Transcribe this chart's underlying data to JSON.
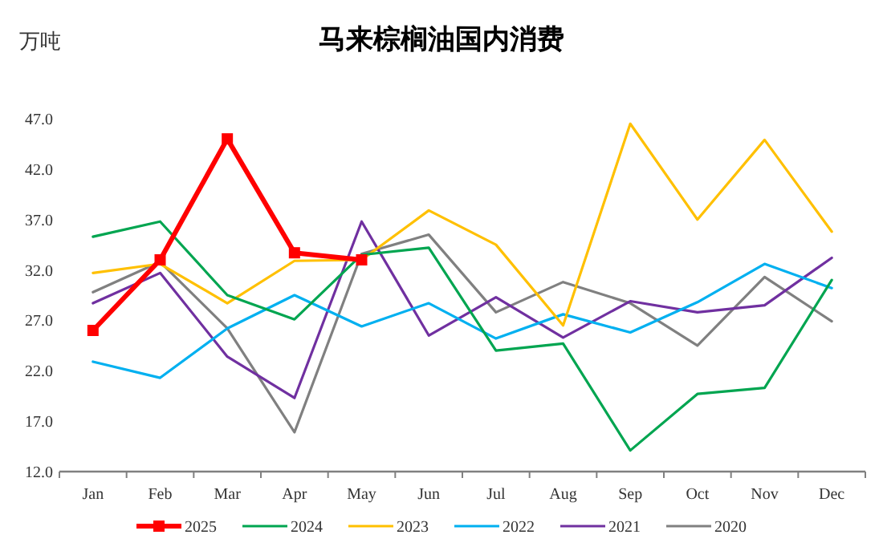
{
  "chart_data": {
    "type": "line",
    "title": "马来棕榈油国内消费",
    "ylabel": "万吨",
    "categories": [
      "Jan",
      "Feb",
      "Mar",
      "Apr",
      "May",
      "Jun",
      "Jul",
      "Aug",
      "Sep",
      "Oct",
      "Nov",
      "Dec"
    ],
    "ylim": [
      12,
      47
    ],
    "yticks": [
      {
        "value": 12,
        "label": "12.0"
      },
      {
        "value": 17,
        "label": "17.0"
      },
      {
        "value": 22,
        "label": "22.0"
      },
      {
        "value": 27,
        "label": "27.0"
      },
      {
        "value": 32,
        "label": "32.0"
      },
      {
        "value": 37,
        "label": "37.0"
      },
      {
        "value": 42,
        "label": "42.0"
      },
      {
        "value": 47,
        "label": "47.0"
      }
    ],
    "grid": false,
    "legend": "bottom",
    "line_style": "solid",
    "series": [
      {
        "name": "2025",
        "color": "#ff0000",
        "marker": "square",
        "values": [
          26.0,
          33.0,
          45.0,
          33.7,
          33.0,
          null,
          null,
          null,
          null,
          null,
          null,
          null
        ]
      },
      {
        "name": "2024",
        "color": "#00a550",
        "values": [
          35.3,
          36.8,
          29.5,
          27.1,
          33.5,
          34.2,
          24.0,
          24.7,
          14.1,
          19.7,
          20.3,
          31.0
        ]
      },
      {
        "name": "2023",
        "color": "#ffc000",
        "values": [
          31.7,
          32.6,
          28.7,
          32.9,
          33.0,
          37.9,
          34.5,
          26.5,
          46.5,
          37.0,
          44.9,
          35.8
        ]
      },
      {
        "name": "2022",
        "color": "#00b0f0",
        "values": [
          22.9,
          21.3,
          26.2,
          29.5,
          26.4,
          28.7,
          25.2,
          27.6,
          25.8,
          28.8,
          32.6,
          30.2
        ]
      },
      {
        "name": "2021",
        "color": "#7030a0",
        "values": [
          28.7,
          31.7,
          23.4,
          19.3,
          36.8,
          25.5,
          29.3,
          25.3,
          28.9,
          27.8,
          28.5,
          33.2
        ]
      },
      {
        "name": "2020",
        "color": "#808080",
        "values": [
          29.8,
          32.8,
          26.2,
          15.9,
          33.6,
          35.5,
          27.8,
          30.8,
          28.7,
          24.5,
          31.3,
          26.9
        ]
      }
    ]
  }
}
